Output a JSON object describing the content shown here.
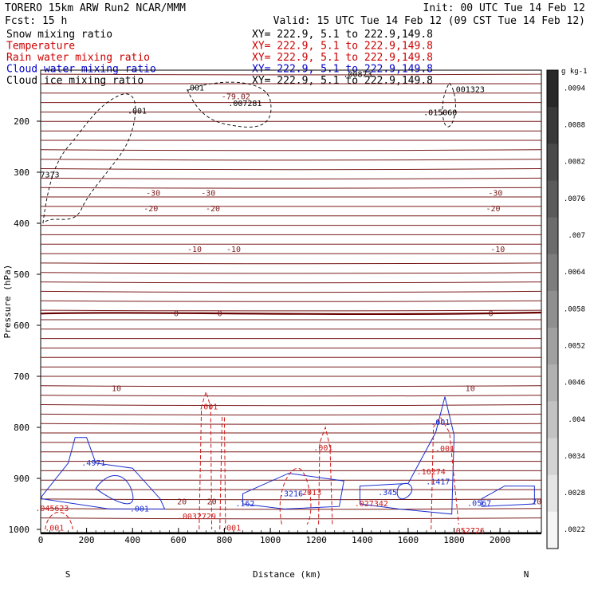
{
  "header": {
    "line1_left": "TORERO  15km ARW   Run2    NCAR/MMM",
    "line1_right": "Init: 00 UTC Tue 14 Feb 12",
    "line2_left": "Fcst:    15 h",
    "line2_right": "Valid: 15 UTC Tue 14 Feb 12 (09 CST Tue 14 Feb 12)"
  },
  "fields": [
    {
      "name": "Snow mixing ratio",
      "xy": "XY= 222.9,   5.1 to 222.9,149.8",
      "color": "#000000"
    },
    {
      "name": "Temperature",
      "xy": "XY= 222.9,   5.1 to 222.9,149.8",
      "color": "#cc0000"
    },
    {
      "name": "Rain water mixing ratio",
      "xy": "XY= 222.9,   5.1 to 222.9,149.8",
      "color": "#cc0000"
    },
    {
      "name": "Cloud water mixing ratio",
      "xy": "XY= 222.9,   5.1 to 222.9,149.8",
      "color": "#0000cc"
    },
    {
      "name": "Cloud ice mixing ratio",
      "xy": "XY= 222.9,   5.1 to 222.9,149.8",
      "color": "#000000"
    }
  ],
  "chart_data": {
    "type": "line",
    "title": "",
    "xlabel": "Distance (km)",
    "ylabel": "Pressure (hPa)",
    "xlim": [
      0,
      2180
    ],
    "ylim": [
      1010,
      100
    ],
    "x_ticks": [
      0,
      200,
      400,
      600,
      800,
      1000,
      1200,
      1400,
      1600,
      1800,
      2000
    ],
    "y_ticks": [
      200,
      300,
      400,
      500,
      600,
      700,
      800,
      900,
      1000
    ],
    "x_end_labels": {
      "left": "S",
      "right": "N"
    },
    "colorbar": {
      "unit": "g kg-1",
      "tick_labels": [
        ".0094",
        ".0088",
        ".0082",
        ".0076",
        ".007",
        ".0064",
        ".0058",
        ".0052",
        ".0046",
        ".004",
        ".0034",
        ".0028",
        ".0022"
      ]
    },
    "temperature_isotherms": [
      {
        "label": "-30",
        "p_left": 340,
        "p_right": 340,
        "label_x": [
          490,
          730,
          1980
        ]
      },
      {
        "label": "-20",
        "p_left": 370,
        "p_right": 370,
        "label_x": [
          480,
          750,
          1970
        ]
      },
      {
        "label": "-10",
        "p_left": 450,
        "p_right": 450,
        "label_x": [
          670,
          840,
          1990
        ]
      },
      {
        "label": "0",
        "p_left": 577,
        "p_right": 575,
        "label_x": [
          590,
          780,
          1960
        ]
      },
      {
        "label": "10",
        "p_left": 723,
        "p_right": 722,
        "label_x": [
          330,
          1870
        ]
      },
      {
        "label": "20",
        "p_left": 942,
        "p_right": 947,
        "label_x": [
          615,
          745,
          2160
        ]
      }
    ],
    "temperature_extremes": [
      {
        "label": "-79.02",
        "x": 850,
        "p": 157
      }
    ],
    "snow_mixing_ratio_labels": [
      {
        "label": ".001",
        "x": 670,
        "p": 140
      },
      {
        "label": ".001",
        "x": 420,
        "p": 185
      },
      {
        "label": ".007281",
        "x": 890,
        "p": 170
      },
      {
        "label": ".001323",
        "x": 1860,
        "p": 143
      },
      {
        "label": ".015060",
        "x": 1740,
        "p": 188
      },
      {
        "label": "7373",
        "x": 40,
        "p": 310
      },
      {
        "label": ".00873",
        "x": 1380,
        "p": 113
      }
    ],
    "cloud_water_labels": [
      {
        "label": ".4971",
        "x": 230,
        "p": 875
      },
      {
        "label": ".001",
        "x": 430,
        "p": 965
      },
      {
        "label": ".162",
        "x": 890,
        "p": 955
      },
      {
        "label": ".3216",
        "x": 1090,
        "p": 935
      },
      {
        "label": ".345",
        "x": 1510,
        "p": 933
      },
      {
        "label": ".1417",
        "x": 1730,
        "p": 912
      },
      {
        "label": ".0567",
        "x": 1910,
        "p": 954
      },
      {
        "label": ".001",
        "x": 1740,
        "p": 795
      }
    ],
    "rain_water_labels": [
      {
        "label": ".001",
        "x": 730,
        "p": 765
      },
      {
        "label": ".001",
        "x": 1230,
        "p": 845
      },
      {
        "label": ".045623",
        "x": 50,
        "p": 964
      },
      {
        "label": ".0032729",
        "x": 680,
        "p": 980
      },
      {
        "label": ".2013",
        "x": 1170,
        "p": 933
      },
      {
        "label": ".027342",
        "x": 1440,
        "p": 955
      },
      {
        "label": ".16274",
        "x": 1700,
        "p": 892
      },
      {
        "label": ".001",
        "x": 1760,
        "p": 847
      },
      {
        "label": ".001",
        "x": 830,
        "p": 1002
      },
      {
        "label": ".001",
        "x": 60,
        "p": 1002
      },
      {
        "label": ".052726",
        "x": 1860,
        "p": 1008
      }
    ]
  }
}
